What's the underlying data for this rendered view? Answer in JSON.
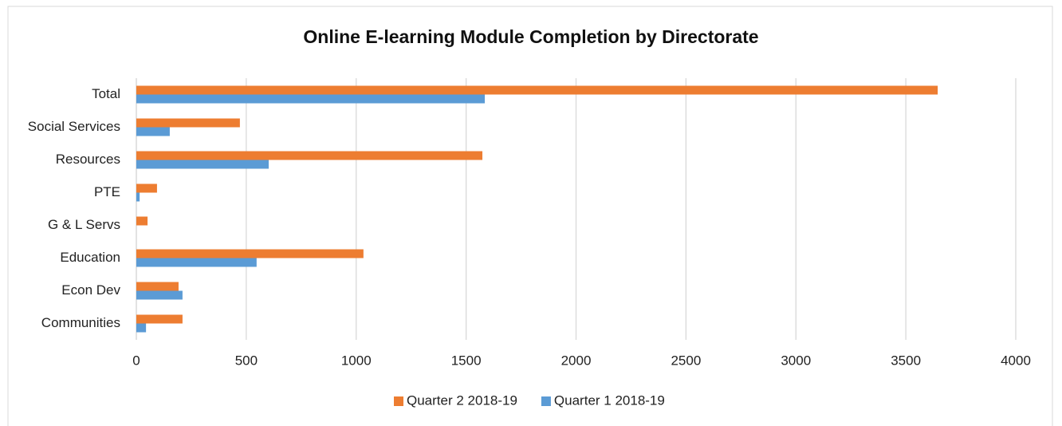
{
  "chart_data": {
    "type": "hbar",
    "title": "Online E-learning Module Completion by Directorate",
    "categories": [
      "Total",
      "Social Services",
      "Resources",
      "PTE",
      "G & L Servs",
      "Education",
      "Econ Dev",
      "Communities"
    ],
    "series": [
      {
        "name": "Quarter 2 2018-19",
        "color": "#ed7d31",
        "values": [
          3645,
          471,
          1574,
          94,
          51,
          1033,
          192,
          210
        ]
      },
      {
        "name": "Quarter 1 2018-19",
        "color": "#5b9bd5",
        "values": [
          1585,
          152,
          602,
          15,
          0,
          547,
          210,
          44
        ]
      }
    ],
    "xlim": [
      0,
      4000
    ],
    "xticks": [
      0,
      500,
      1000,
      1500,
      2000,
      2500,
      3000,
      3500,
      4000
    ],
    "grid": true,
    "legend": "bottom"
  }
}
